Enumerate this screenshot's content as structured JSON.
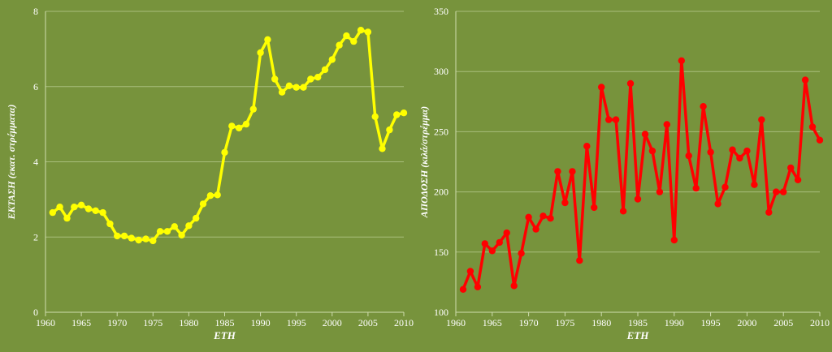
{
  "chart_data": [
    {
      "type": "line",
      "title": "",
      "xlabel": "ΕΤΗ",
      "ylabel": "ΕΚΤΑΣΗ  (εκατ. στρέμματα)",
      "xlim": [
        1960,
        2010
      ],
      "ylim": [
        0,
        8
      ],
      "xticks": [
        "1960",
        "1965",
        "1970",
        "1975",
        "1980",
        "1985",
        "1990",
        "1995",
        "2000",
        "2005",
        "2010"
      ],
      "yticks": [
        "0",
        "2",
        "4",
        "6",
        "8"
      ],
      "grid": true,
      "line_color": "#ffff00",
      "background": "#77933c",
      "x": [
        1961,
        1962,
        1963,
        1964,
        1965,
        1966,
        1967,
        1968,
        1969,
        1970,
        1971,
        1972,
        1973,
        1974,
        1975,
        1976,
        1977,
        1978,
        1979,
        1980,
        1981,
        1982,
        1983,
        1984,
        1985,
        1986,
        1987,
        1988,
        1989,
        1990,
        1991,
        1992,
        1993,
        1994,
        1995,
        1996,
        1997,
        1998,
        1999,
        2000,
        2001,
        2002,
        2003,
        2004,
        2005,
        2006,
        2007,
        2008,
        2009,
        2010
      ],
      "values": [
        2.65,
        2.8,
        2.5,
        2.8,
        2.85,
        2.75,
        2.7,
        2.65,
        2.35,
        2.03,
        2.03,
        1.97,
        1.92,
        1.95,
        1.9,
        2.15,
        2.15,
        2.28,
        2.05,
        2.3,
        2.5,
        2.88,
        3.1,
        3.12,
        4.25,
        4.95,
        4.9,
        5.0,
        5.4,
        6.9,
        7.25,
        6.2,
        5.85,
        6.02,
        5.98,
        5.98,
        6.2,
        6.25,
        6.45,
        6.72,
        7.1,
        7.35,
        7.2,
        7.5,
        7.45,
        5.2,
        4.35,
        4.85,
        5.25,
        5.3
      ]
    },
    {
      "type": "line",
      "title": "",
      "xlabel": "ΕΤΗ",
      "ylabel": "ΑΠΟΔΟΣΗ  (κιλά/στρέμμα)",
      "xlim": [
        1960,
        2010
      ],
      "ylim": [
        100,
        350
      ],
      "xticks": [
        "1960",
        "1965",
        "1970",
        "1975",
        "1980",
        "1985",
        "1990",
        "1995",
        "2000",
        "2005",
        "2010"
      ],
      "yticks": [
        "100",
        "150",
        "200",
        "250",
        "300",
        "350"
      ],
      "grid": true,
      "line_color": "#ff0000",
      "background": "#77933c",
      "x": [
        1961,
        1962,
        1963,
        1964,
        1965,
        1966,
        1967,
        1968,
        1969,
        1970,
        1971,
        1972,
        1973,
        1974,
        1975,
        1976,
        1977,
        1978,
        1979,
        1980,
        1981,
        1982,
        1983,
        1984,
        1985,
        1986,
        1987,
        1988,
        1989,
        1990,
        1991,
        1992,
        1993,
        1994,
        1995,
        1996,
        1997,
        1998,
        1999,
        2000,
        2001,
        2002,
        2003,
        2004,
        2005,
        2006,
        2007,
        2008,
        2009,
        2010
      ],
      "values": [
        119,
        134,
        121,
        157,
        151,
        158,
        166,
        122,
        149,
        179,
        169,
        180,
        178,
        217,
        191,
        217,
        143,
        238,
        187,
        287,
        260,
        260,
        184,
        290,
        194,
        248,
        234,
        200,
        256,
        160,
        309,
        230,
        203,
        271,
        233,
        190,
        204,
        235,
        228,
        234,
        206,
        260,
        183,
        200,
        200,
        220,
        210,
        293,
        254,
        243
      ]
    }
  ]
}
